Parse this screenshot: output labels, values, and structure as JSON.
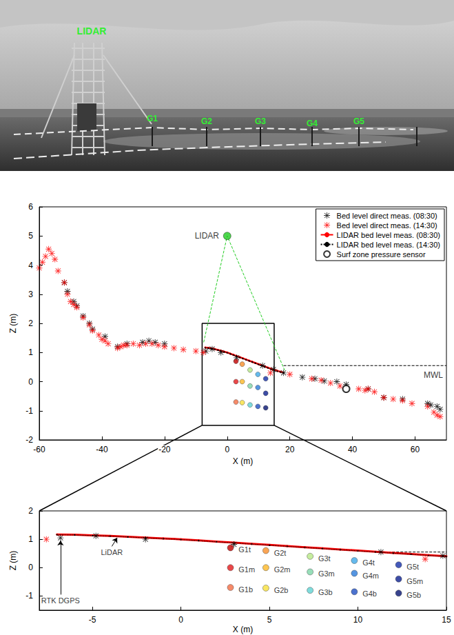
{
  "photo": {
    "labels": [
      "LIDAR",
      "G1",
      "G2",
      "G3",
      "G4",
      "G5"
    ],
    "color": "#33ee33"
  },
  "chart_data": [
    {
      "type": "scatter",
      "xlabel": "X (m)",
      "ylabel": "Z (m)",
      "xlim": [
        -60,
        70
      ],
      "xticks": [
        -60,
        -40,
        -20,
        0,
        20,
        40,
        60
      ],
      "ylim": [
        -2,
        6
      ],
      "yticks": [
        -2,
        -1,
        0,
        1,
        2,
        3,
        4,
        5,
        6
      ],
      "grid": false,
      "legend": "upper right",
      "series": [
        {
          "name": "Bed level direct meas. (08:30)",
          "type": "scatter",
          "marker": "asterisk",
          "color": "#000000",
          "x": [
            -52,
            -51,
            -49,
            -48,
            -46,
            -44,
            -43,
            -39,
            -35,
            -32,
            -27,
            -25,
            -23,
            -20,
            -6.8,
            -4.8,
            -2,
            3,
            11.3,
            14.8,
            18,
            24,
            28,
            31,
            35,
            38,
            45,
            50,
            56,
            64,
            65,
            67,
            68
          ],
          "values": [
            3.4,
            3.1,
            2.75,
            2.6,
            2.25,
            2.0,
            1.8,
            1.55,
            1.2,
            1.3,
            1.35,
            1.4,
            1.35,
            1.3,
            1.05,
            1.12,
            1.0,
            0.82,
            0.55,
            0.42,
            0.3,
            0.15,
            0.1,
            0.02,
            0.0,
            -0.1,
            -0.25,
            -0.55,
            -0.6,
            -0.75,
            -0.8,
            -0.85,
            -0.95
          ]
        },
        {
          "name": "Bed level direct meas. (14:30)",
          "type": "scatter",
          "marker": "asterisk",
          "color": "#ff0000",
          "x": [
            -60,
            -59,
            -58,
            -57,
            -56,
            -55,
            -54,
            -52,
            -51,
            -50,
            -49,
            -48,
            -46,
            -44,
            -43,
            -41,
            -40,
            -39,
            -38,
            -35,
            -34,
            -33,
            -32,
            -30,
            -28,
            -26,
            -24,
            -22,
            -20,
            -17,
            -14,
            -10,
            -7.6,
            13.8,
            20,
            27,
            30,
            33,
            36,
            42,
            44,
            45,
            47,
            50,
            53,
            56,
            59,
            64,
            66,
            67,
            68
          ],
          "values": [
            3.9,
            4.1,
            4.3,
            4.55,
            4.4,
            4.2,
            3.8,
            3.4,
            3.0,
            2.75,
            2.65,
            2.55,
            2.2,
            1.95,
            1.75,
            1.6,
            1.45,
            1.4,
            1.3,
            1.15,
            1.2,
            1.25,
            1.25,
            1.3,
            1.25,
            1.3,
            1.3,
            1.25,
            1.2,
            1.15,
            1.1,
            1.05,
            1.0,
            0.3,
            0.25,
            0.1,
            0.05,
            -0.05,
            -0.15,
            -0.25,
            -0.3,
            -0.25,
            -0.35,
            -0.55,
            -0.6,
            -0.65,
            -0.75,
            -0.85,
            -1.05,
            -1.15,
            -1.2
          ]
        },
        {
          "name": "LIDAR bed level meas. (08:30)",
          "type": "line",
          "marker": "point",
          "line_style": "solid",
          "color": "#ff0000",
          "x": [
            -7,
            -6,
            -5,
            -4,
            -3,
            -2,
            -1,
            0,
            1,
            2,
            3,
            4,
            5,
            6,
            7,
            8,
            9,
            10,
            11,
            12,
            13,
            14,
            15,
            16,
            17,
            18
          ],
          "values": [
            1.17,
            1.16,
            1.14,
            1.12,
            1.09,
            1.06,
            1.03,
            1.0,
            0.96,
            0.92,
            0.88,
            0.84,
            0.8,
            0.76,
            0.72,
            0.68,
            0.64,
            0.6,
            0.56,
            0.52,
            0.48,
            0.44,
            0.4,
            0.37,
            0.34,
            0.31
          ]
        },
        {
          "name": "LIDAR bed level meas. (14:30)",
          "type": "line",
          "marker": "point",
          "line_style": "dotted",
          "color": "#000000",
          "x": [
            -7,
            -6,
            -5,
            -4,
            -3,
            -2,
            -1,
            0,
            1,
            2,
            3,
            4,
            5,
            6,
            7,
            8,
            9,
            10,
            11,
            12,
            13,
            14,
            15,
            16,
            17,
            18
          ],
          "values": [
            1.16,
            1.15,
            1.13,
            1.11,
            1.08,
            1.05,
            1.02,
            0.99,
            0.95,
            0.91,
            0.87,
            0.83,
            0.79,
            0.75,
            0.71,
            0.67,
            0.63,
            0.59,
            0.55,
            0.51,
            0.47,
            0.43,
            0.39,
            0.36,
            0.33,
            0.3
          ]
        },
        {
          "name": "Surf zone pressure sensor",
          "type": "scatter",
          "marker": "open_circle",
          "color": "#000000",
          "x": [
            38
          ],
          "values": [
            -0.25
          ]
        }
      ],
      "lidar": {
        "label": "LIDAR",
        "x": 0,
        "y": 5,
        "color": "#22cc22",
        "field_of_view": [
          [
            -7.5,
            1.35
          ],
          [
            18.5,
            0.35
          ]
        ]
      },
      "sensors": {
        "x": [
          2.8,
          2.8,
          2.8,
          4.8,
          4.8,
          4.8,
          7.3,
          7.3,
          7.3,
          9.8,
          9.8,
          9.8,
          12.3,
          12.3,
          12.3
        ],
        "values": [
          0.7,
          0.0,
          -0.7,
          0.6,
          0.0,
          -0.72,
          0.4,
          -0.15,
          -0.8,
          0.25,
          -0.2,
          -0.85,
          0.1,
          -0.4,
          -0.9
        ],
        "colors": [
          "#c00000",
          "#e31a1c",
          "#f46d43",
          "#f98e2b",
          "#fdb827",
          "#f7e03c",
          "#b8e986",
          "#7ed6a8",
          "#5fd3d3",
          "#3fa9e8",
          "#2b7bd9",
          "#1f4fc2",
          "#1530a8",
          "#0c2090",
          "#061470"
        ]
      },
      "mwl": {
        "label": "MWL",
        "value": 0.55,
        "x": [
          18,
          70
        ]
      },
      "zoom_box": {
        "xlim": [
          -8,
          15
        ],
        "ylim": [
          -1.5,
          2
        ]
      }
    },
    {
      "type": "scatter",
      "xlabel": "X (m)",
      "ylabel": "Z (m)",
      "xlim": [
        -8,
        15
      ],
      "xticks": [
        -5,
        0,
        5,
        10,
        15
      ],
      "ylim": [
        -1.5,
        2
      ],
      "yticks": [
        -1,
        0,
        1,
        2
      ],
      "grid": false,
      "series": [
        {
          "name": "Bed level direct meas. (08:30)",
          "type": "scatter",
          "marker": "asterisk",
          "color": "#000000",
          "x": [
            -6.8,
            -4.8,
            -2,
            3,
            11.3,
            14.8
          ],
          "values": [
            1.05,
            1.12,
            1.0,
            0.82,
            0.55,
            0.42
          ]
        },
        {
          "name": "Bed level direct meas. (14:30)",
          "type": "scatter",
          "marker": "asterisk",
          "color": "#ff0000",
          "x": [
            -7.6,
            13.8
          ],
          "values": [
            1.0,
            0.3
          ]
        },
        {
          "name": "LIDAR bed level meas. (08:30)",
          "type": "line",
          "marker": "point",
          "line_style": "solid",
          "color": "#ff0000",
          "x": [
            -7,
            -6,
            -5,
            -4,
            -3,
            -2,
            -1,
            0,
            1,
            2,
            3,
            4,
            5,
            6,
            7,
            8,
            9,
            10,
            11,
            12,
            13,
            14,
            15
          ],
          "values": [
            1.17,
            1.16,
            1.14,
            1.12,
            1.09,
            1.06,
            1.03,
            1.0,
            0.96,
            0.92,
            0.88,
            0.84,
            0.8,
            0.76,
            0.72,
            0.68,
            0.64,
            0.6,
            0.56,
            0.52,
            0.48,
            0.44,
            0.4
          ]
        },
        {
          "name": "LIDAR bed level meas. (14:30)",
          "type": "line",
          "marker": "point",
          "line_style": "dotted",
          "color": "#000000",
          "x": [
            -7,
            -6,
            -5,
            -4,
            -3,
            -2,
            -1,
            0,
            1,
            2,
            3,
            4,
            5,
            6,
            7,
            8,
            9,
            10,
            11,
            12,
            13,
            14,
            15
          ],
          "values": [
            1.16,
            1.15,
            1.13,
            1.11,
            1.08,
            1.05,
            1.02,
            0.99,
            0.95,
            0.91,
            0.87,
            0.83,
            0.79,
            0.75,
            0.71,
            0.67,
            0.63,
            0.59,
            0.55,
            0.51,
            0.47,
            0.43,
            0.39
          ]
        }
      ],
      "sensors": {
        "names": [
          "G1t",
          "G1m",
          "G1b",
          "G2t",
          "G2m",
          "G2b",
          "G3t",
          "G3m",
          "G3b",
          "G4t",
          "G4m",
          "G4b",
          "G5t",
          "G5m",
          "G5b"
        ],
        "x": [
          2.8,
          2.8,
          2.8,
          4.8,
          4.8,
          4.8,
          7.3,
          7.3,
          7.3,
          9.8,
          9.8,
          9.8,
          12.3,
          12.3,
          12.3
        ],
        "values": [
          0.7,
          0.0,
          -0.7,
          0.6,
          0.0,
          -0.72,
          0.4,
          -0.15,
          -0.8,
          0.25,
          -0.2,
          -0.85,
          0.1,
          -0.4,
          -0.9
        ],
        "colors": [
          "#c00000",
          "#e31a1c",
          "#f46d43",
          "#f98e2b",
          "#fdb827",
          "#f7e03c",
          "#b8e986",
          "#7ed6a8",
          "#5fd3d3",
          "#3fa9e8",
          "#2b7bd9",
          "#1f4fc2",
          "#1530a8",
          "#0c2090",
          "#061470"
        ]
      },
      "mwl": {
        "value": 0.55,
        "x": [
          11,
          15
        ]
      },
      "annotations": [
        {
          "text": "RTK DGPS",
          "x": -6.8,
          "y": -0.95,
          "arrow_to": [
            -6.8,
            0.95
          ]
        },
        {
          "text": "LiDAR",
          "x": -3.9,
          "y": 0.75,
          "arrow_to": [
            -3.6,
            1.05
          ]
        }
      ]
    }
  ]
}
